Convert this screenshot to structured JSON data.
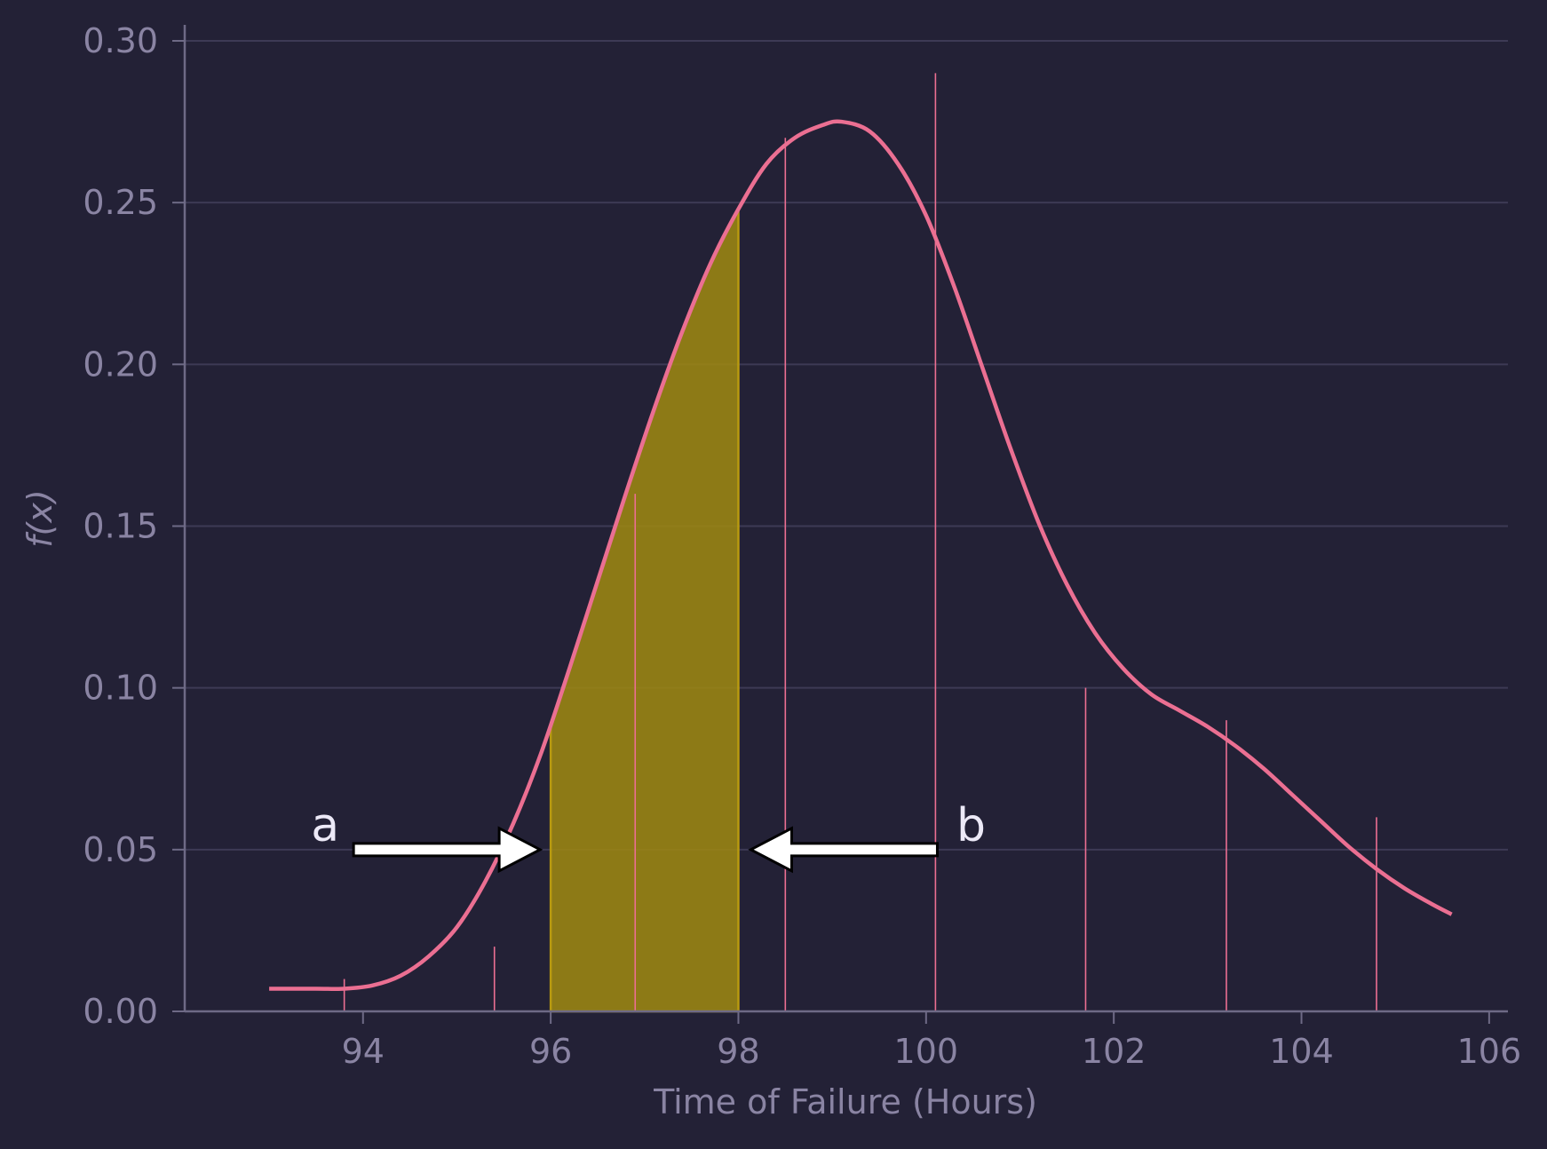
{
  "chart_data": {
    "type": "area",
    "title": "",
    "xlabel": "Time of Failure (Hours)",
    "ylabel": "f(x)",
    "xlim": [
      92.1,
      106.2
    ],
    "ylim": [
      0.0,
      0.3
    ],
    "grid": "horizontal",
    "x_ticks": [
      "94",
      "96",
      "98",
      "100",
      "102",
      "104",
      "106"
    ],
    "y_ticks": [
      "0.00",
      "0.05",
      "0.10",
      "0.15",
      "0.20",
      "0.25",
      "0.30"
    ],
    "density_curve": {
      "color": "#eb6f92",
      "x": [
        93.0,
        93.5,
        93.8,
        94.1,
        94.4,
        94.7,
        95.0,
        95.3,
        95.6,
        95.9,
        96.2,
        96.5,
        96.8,
        97.1,
        97.4,
        97.7,
        98.0,
        98.3,
        98.6,
        98.9,
        99.1,
        99.4,
        99.7,
        100.0,
        100.3,
        100.6,
        100.9,
        101.2,
        101.5,
        101.8,
        102.1,
        102.4,
        102.7,
        103.0,
        103.3,
        103.6,
        103.9,
        104.2,
        104.5,
        104.8,
        105.1,
        105.4,
        105.6
      ],
      "y": [
        0.007,
        0.007,
        0.007,
        0.008,
        0.011,
        0.017,
        0.026,
        0.04,
        0.058,
        0.08,
        0.106,
        0.133,
        0.16,
        0.186,
        0.21,
        0.231,
        0.248,
        0.262,
        0.27,
        0.274,
        0.275,
        0.272,
        0.262,
        0.246,
        0.224,
        0.199,
        0.174,
        0.151,
        0.132,
        0.117,
        0.106,
        0.098,
        0.093,
        0.088,
        0.082,
        0.075,
        0.067,
        0.059,
        0.051,
        0.044,
        0.038,
        0.033,
        0.03
      ]
    },
    "shaded_interval": {
      "from": 96.0,
      "to": 98.0,
      "color": "#a08a10"
    },
    "sample_spikes": [
      {
        "x": 93.8,
        "y": 0.01
      },
      {
        "x": 95.4,
        "y": 0.02
      },
      {
        "x": 96.9,
        "y": 0.16
      },
      {
        "x": 98.5,
        "y": 0.27
      },
      {
        "x": 100.1,
        "y": 0.29
      },
      {
        "x": 101.7,
        "y": 0.1
      },
      {
        "x": 103.2,
        "y": 0.09
      },
      {
        "x": 104.8,
        "y": 0.06
      }
    ],
    "annotations": [
      {
        "label": "a",
        "points_to_x": 96.0,
        "direction": "right",
        "arrow_y": 0.05
      },
      {
        "label": "b",
        "points_to_x": 98.0,
        "direction": "left",
        "arrow_y": 0.05
      }
    ]
  }
}
